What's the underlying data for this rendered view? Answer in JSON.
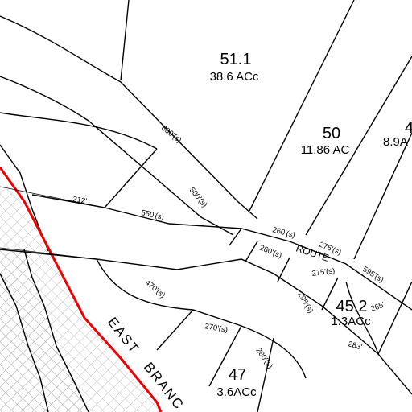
{
  "parcels": [
    {
      "id": "51.1",
      "area": "38.6 ACc"
    },
    {
      "id": "50",
      "area": "11.86 AC"
    },
    {
      "id": "4",
      "area": "8.9A"
    },
    {
      "id": "45.2",
      "area": "1.3ACc"
    },
    {
      "id": "47",
      "area": "3.6ACc"
    }
  ],
  "dimensions": [
    "800'(s)",
    "500'(s)",
    "212'",
    "550'(s)",
    "260'(s)",
    "275'(s)",
    "595'(s)",
    "260'(s)",
    "275'(s)",
    "295'(s)",
    "265'",
    "283'",
    "470'(s)",
    "270'(s)",
    "280'(s)"
  ],
  "road_label": "ROUTE",
  "river_label": [
    "EAST",
    "BRANC"
  ]
}
